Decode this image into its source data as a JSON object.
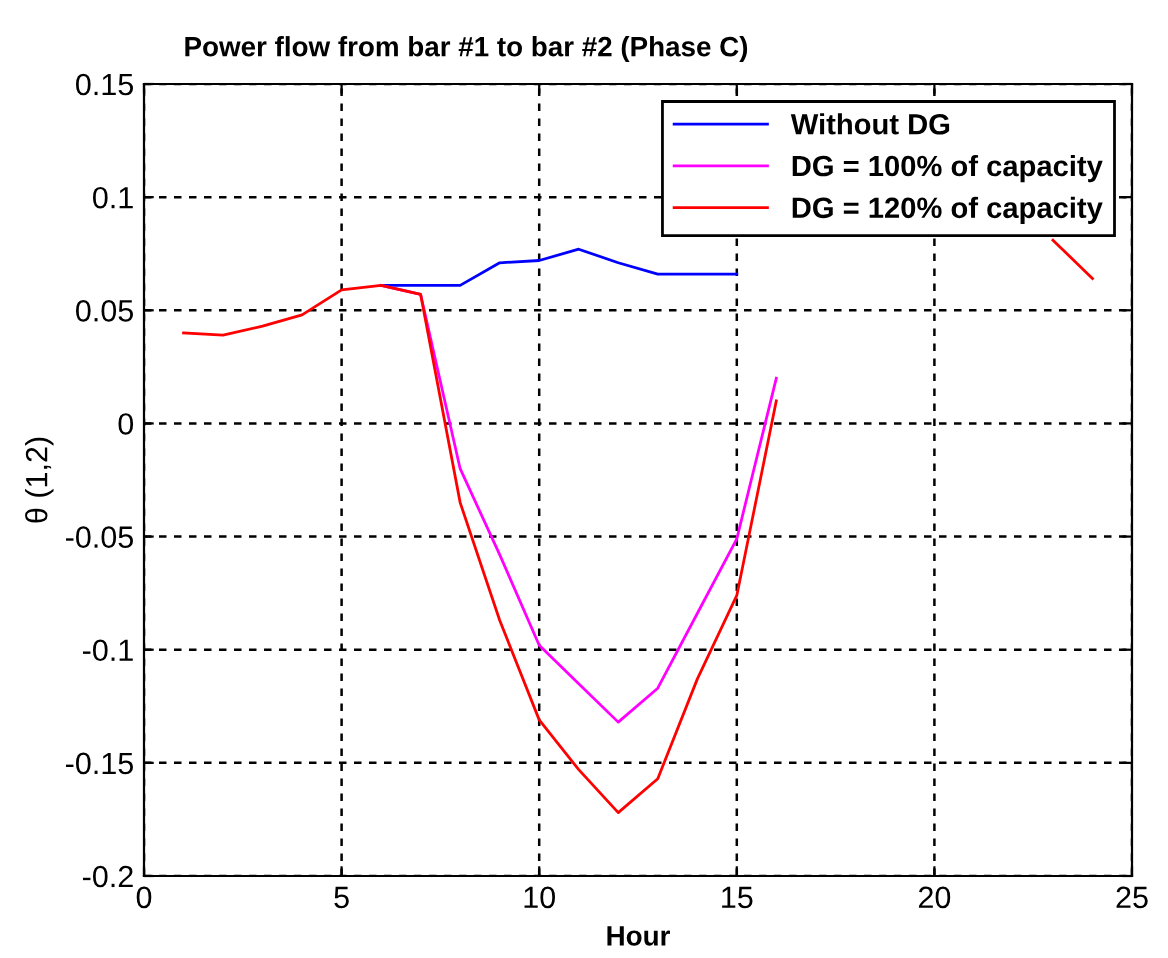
{
  "chart_data": {
    "type": "line",
    "title": "Power flow from bar #1 to bar #2 (Phase C)",
    "xlabel": "Hour",
    "ylabel": "θ (1,2)",
    "x": [
      1,
      2,
      3,
      4,
      5,
      6,
      7,
      8,
      9,
      10,
      11,
      12,
      13,
      14,
      15,
      16,
      17,
      18,
      19,
      20,
      21,
      22,
      23,
      24
    ],
    "series": [
      {
        "name": "Without DG",
        "color": "#0000ff",
        "values": [
          null,
          null,
          null,
          null,
          null,
          0.061,
          0.061,
          0.061,
          0.071,
          0.072,
          0.077,
          0.071,
          0.066,
          0.066,
          0.066,
          null,
          null,
          null,
          null,
          null,
          null,
          null,
          null,
          null
        ]
      },
      {
        "name": "DG = 100% of capacity",
        "color": "#ff00ff",
        "values": [
          null,
          null,
          null,
          null,
          null,
          0.061,
          0.057,
          -0.02,
          -0.058,
          -0.098,
          -0.115,
          -0.132,
          -0.117,
          -0.084,
          -0.051,
          0.02,
          null,
          null,
          null,
          null,
          null,
          null,
          null,
          null
        ]
      },
      {
        "name": "DG = 120% of capacity",
        "color": "#ff0000",
        "values": [
          0.04,
          0.039,
          0.043,
          0.048,
          0.059,
          0.061,
          0.057,
          -0.035,
          -0.087,
          -0.131,
          -0.153,
          -0.172,
          -0.157,
          -0.113,
          -0.076,
          0.01,
          null,
          null,
          null,
          null,
          null,
          null,
          0.081,
          0.064
        ]
      }
    ],
    "xlim": [
      0,
      25
    ],
    "xticks": [
      0,
      5,
      10,
      15,
      20,
      25
    ],
    "ylim": [
      -0.2,
      0.15
    ],
    "yticks": [
      -0.2,
      -0.15,
      -0.1,
      -0.05,
      0,
      0.05,
      0.1,
      0.15
    ],
    "grid": true,
    "legend": "top right",
    "line_style": "solid",
    "marker": "none"
  }
}
